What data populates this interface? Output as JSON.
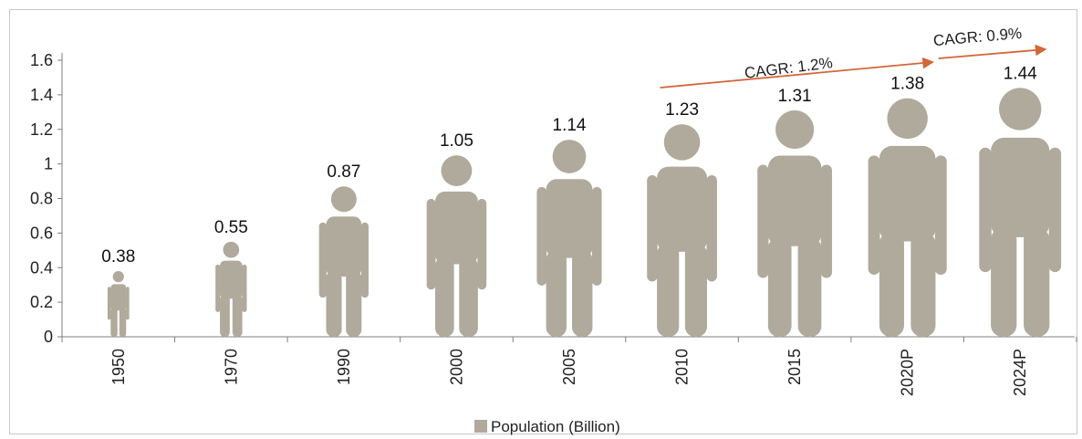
{
  "chart_data": {
    "type": "bar",
    "title": "",
    "xlabel": "",
    "ylabel": "",
    "categories": [
      "1950",
      "1970",
      "1990",
      "2000",
      "2005",
      "2010",
      "2015",
      "2020P",
      "2024P"
    ],
    "series": [
      {
        "name": "Population (Billion)",
        "values": [
          0.38,
          0.55,
          0.87,
          1.05,
          1.14,
          1.23,
          1.31,
          1.38,
          1.44
        ],
        "labels": [
          "0.38",
          "0.55",
          "0.87",
          "1.05",
          "1.14",
          "1.23",
          "1.31",
          "1.38",
          "1.44"
        ]
      }
    ],
    "ylim": [
      0,
      1.6
    ],
    "yticks": [
      0,
      0.2,
      0.4,
      0.6,
      0.8,
      1,
      1.2,
      1.4,
      1.6
    ],
    "ytick_labels": [
      "0",
      "0.2",
      "0.4",
      "0.6",
      "0.8",
      "1",
      "1.2",
      "1.4",
      "1.6"
    ],
    "mark_style": "human-figure pictogram",
    "bar_color": "#b0aa9c",
    "grid": false,
    "legend": {
      "position": "bottom-center",
      "entries": [
        "Population (Billion)"
      ]
    },
    "annotations": [
      {
        "text": "CAGR: 1.2%",
        "from": "2010",
        "to": "2020P",
        "color": "#d2673a"
      },
      {
        "text": "CAGR: 0.9%",
        "from": "2020P",
        "to": "2024P",
        "color": "#d2673a"
      }
    ]
  }
}
